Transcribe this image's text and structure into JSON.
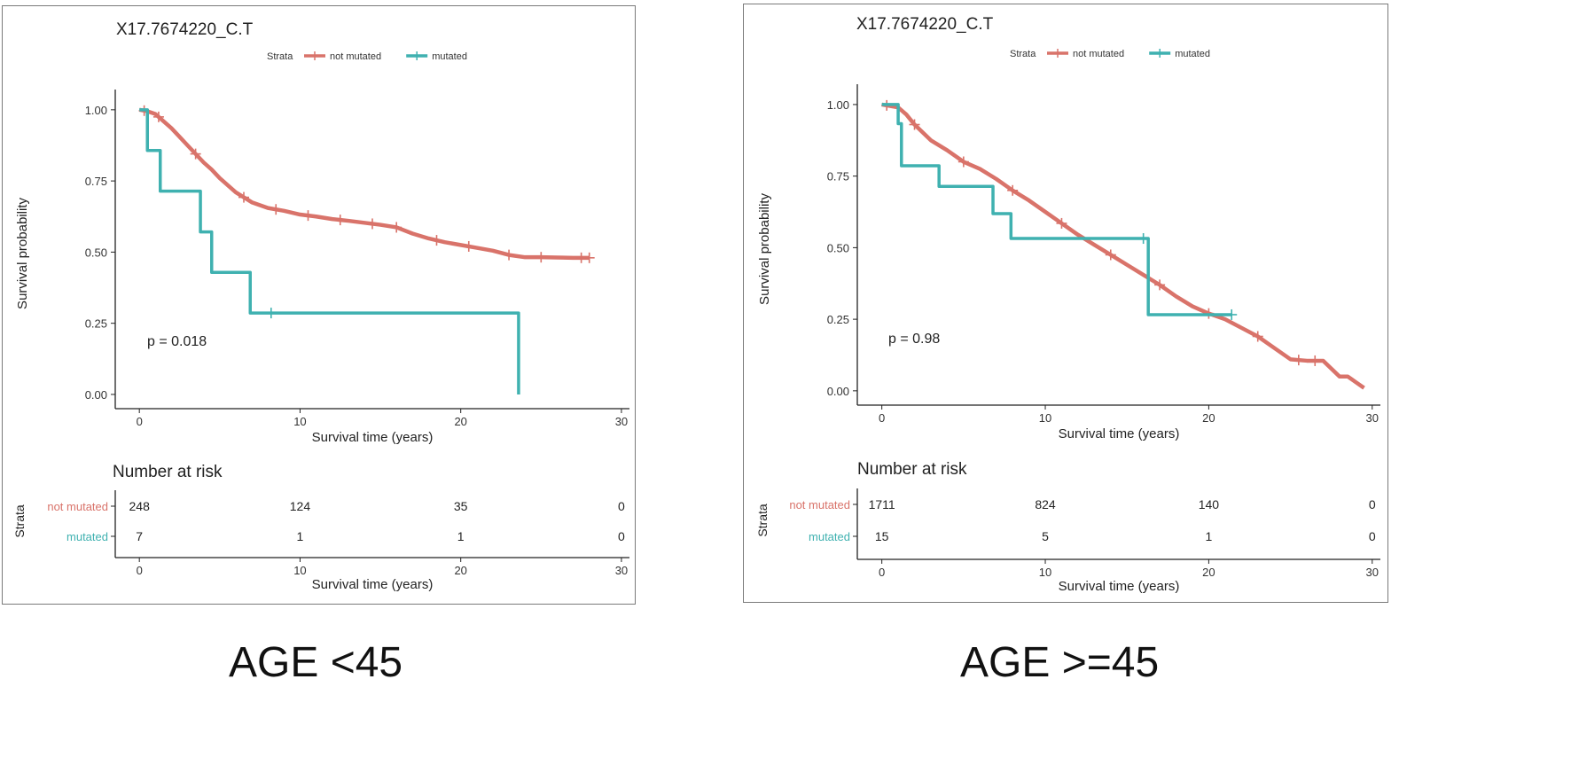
{
  "colors": {
    "not_mutated": "#d9736a",
    "mutated": "#3fb1b0",
    "axis": "#222222",
    "text": "#333333"
  },
  "chart_data": [
    {
      "type": "line",
      "title": "X17.7674220_C.T",
      "legend": {
        "title": "Strata",
        "placement": "top",
        "entries": [
          "not mutated",
          "mutated"
        ]
      },
      "xlabel": "Survival time (years)",
      "ylabel": "Survival probability",
      "xlim": [
        -1.5,
        30.5
      ],
      "ylim": [
        -0.05,
        1.04
      ],
      "xticks": [
        0,
        10,
        20,
        30
      ],
      "xtick_labels": [
        "0",
        "10",
        "20",
        "30"
      ],
      "yticks": [
        0,
        0.25,
        0.5,
        0.75,
        1.0
      ],
      "ytick_labels": [
        "0.00",
        "0.25",
        "0.50",
        "0.75",
        "1.00"
      ],
      "pvalue": "p = 0.018",
      "grid": false,
      "series": [
        {
          "name": "not mutated",
          "step": false,
          "x": [
            0,
            0.5,
            1,
            1.5,
            2,
            2.5,
            3,
            3.5,
            4,
            4.5,
            5,
            5.5,
            6,
            7,
            8,
            9,
            10,
            11,
            12,
            13,
            14,
            15,
            16,
            17,
            18,
            19,
            20,
            21,
            22,
            23,
            24,
            25,
            26,
            27,
            28
          ],
          "y": [
            1.0,
            0.995,
            0.985,
            0.96,
            0.935,
            0.905,
            0.875,
            0.845,
            0.815,
            0.79,
            0.76,
            0.735,
            0.71,
            0.675,
            0.655,
            0.645,
            0.632,
            0.625,
            0.616,
            0.61,
            0.603,
            0.596,
            0.587,
            0.565,
            0.548,
            0.535,
            0.525,
            0.515,
            0.505,
            0.49,
            0.482,
            0.482,
            0.481,
            0.48,
            0.48
          ],
          "censor_x": [
            0.3,
            1.2,
            3.5,
            6.5,
            8.5,
            10.5,
            12.5,
            14.5,
            16,
            18.5,
            20.5,
            23,
            25,
            27.5,
            28
          ]
        },
        {
          "name": "mutated",
          "step": true,
          "x": [
            0,
            0.5,
            1.3,
            3.8,
            4.5,
            6.9,
            23.6
          ],
          "y": [
            1.0,
            0.857,
            0.714,
            0.571,
            0.429,
            0.286,
            0.0
          ],
          "censor_x": [
            8.2
          ]
        }
      ],
      "risk_table": {
        "title": "Number at risk",
        "strata_label": "Strata",
        "xlabel": "Survival time (years)",
        "times": [
          0,
          10,
          20,
          30
        ],
        "rows": [
          {
            "name": "not mutated",
            "counts": [
              "248",
              "124",
              "35",
              "0"
            ]
          },
          {
            "name": "mutated",
            "counts": [
              "7",
              "1",
              "1",
              "0"
            ]
          }
        ]
      }
    },
    {
      "type": "line",
      "title": "X17.7674220_C.T",
      "legend": {
        "title": "Strata",
        "placement": "top",
        "entries": [
          "not mutated",
          "mutated"
        ]
      },
      "xlabel": "Survival time (years)",
      "ylabel": "Survival probability",
      "xlim": [
        -1.5,
        30.5
      ],
      "ylim": [
        -0.05,
        1.04
      ],
      "xticks": [
        0,
        10,
        20,
        30
      ],
      "xtick_labels": [
        "0",
        "10",
        "20",
        "30"
      ],
      "yticks": [
        0,
        0.25,
        0.5,
        0.75,
        1.0
      ],
      "ytick_labels": [
        "0.00",
        "0.25",
        "0.50",
        "0.75",
        "1.00"
      ],
      "pvalue": "p = 0.98",
      "grid": false,
      "series": [
        {
          "name": "not mutated",
          "step": false,
          "x": [
            0,
            0.5,
            1,
            1.5,
            2,
            3,
            4,
            5,
            6,
            7,
            8,
            9,
            10,
            11,
            12,
            13,
            14,
            15,
            16,
            17,
            18,
            19,
            20,
            21,
            22,
            23,
            24,
            25,
            26,
            27,
            28,
            28.5,
            29,
            29.5
          ],
          "y": [
            1.0,
            0.995,
            0.99,
            0.965,
            0.93,
            0.875,
            0.84,
            0.8,
            0.775,
            0.74,
            0.7,
            0.665,
            0.625,
            0.585,
            0.545,
            0.51,
            0.475,
            0.44,
            0.405,
            0.37,
            0.33,
            0.295,
            0.27,
            0.25,
            0.22,
            0.19,
            0.15,
            0.11,
            0.105,
            0.105,
            0.05,
            0.05,
            0.03,
            0.01
          ],
          "censor_x": [
            0.3,
            2,
            5,
            8,
            11,
            14,
            17,
            20,
            23,
            25.5,
            26.5
          ]
        },
        {
          "name": "mutated",
          "step": true,
          "x": [
            0,
            1.0,
            1.2,
            3.5,
            6.8,
            7.9,
            16.3,
            21.4
          ],
          "y": [
            1.0,
            0.933,
            0.786,
            0.714,
            0.619,
            0.532,
            0.266,
            0.266
          ],
          "censor_x": [
            16.0,
            21.4
          ]
        }
      ],
      "risk_table": {
        "title": "Number at risk",
        "strata_label": "Strata",
        "xlabel": "Survival time (years)",
        "times": [
          0,
          10,
          20,
          30
        ],
        "rows": [
          {
            "name": "not mutated",
            "counts": [
              "1711",
              "824",
              "140",
              "0"
            ]
          },
          {
            "name": "mutated",
            "counts": [
              "15",
              "5",
              "1",
              "0"
            ]
          }
        ]
      }
    }
  ],
  "captions": {
    "left": "AGE <45",
    "right": "AGE >=45"
  }
}
